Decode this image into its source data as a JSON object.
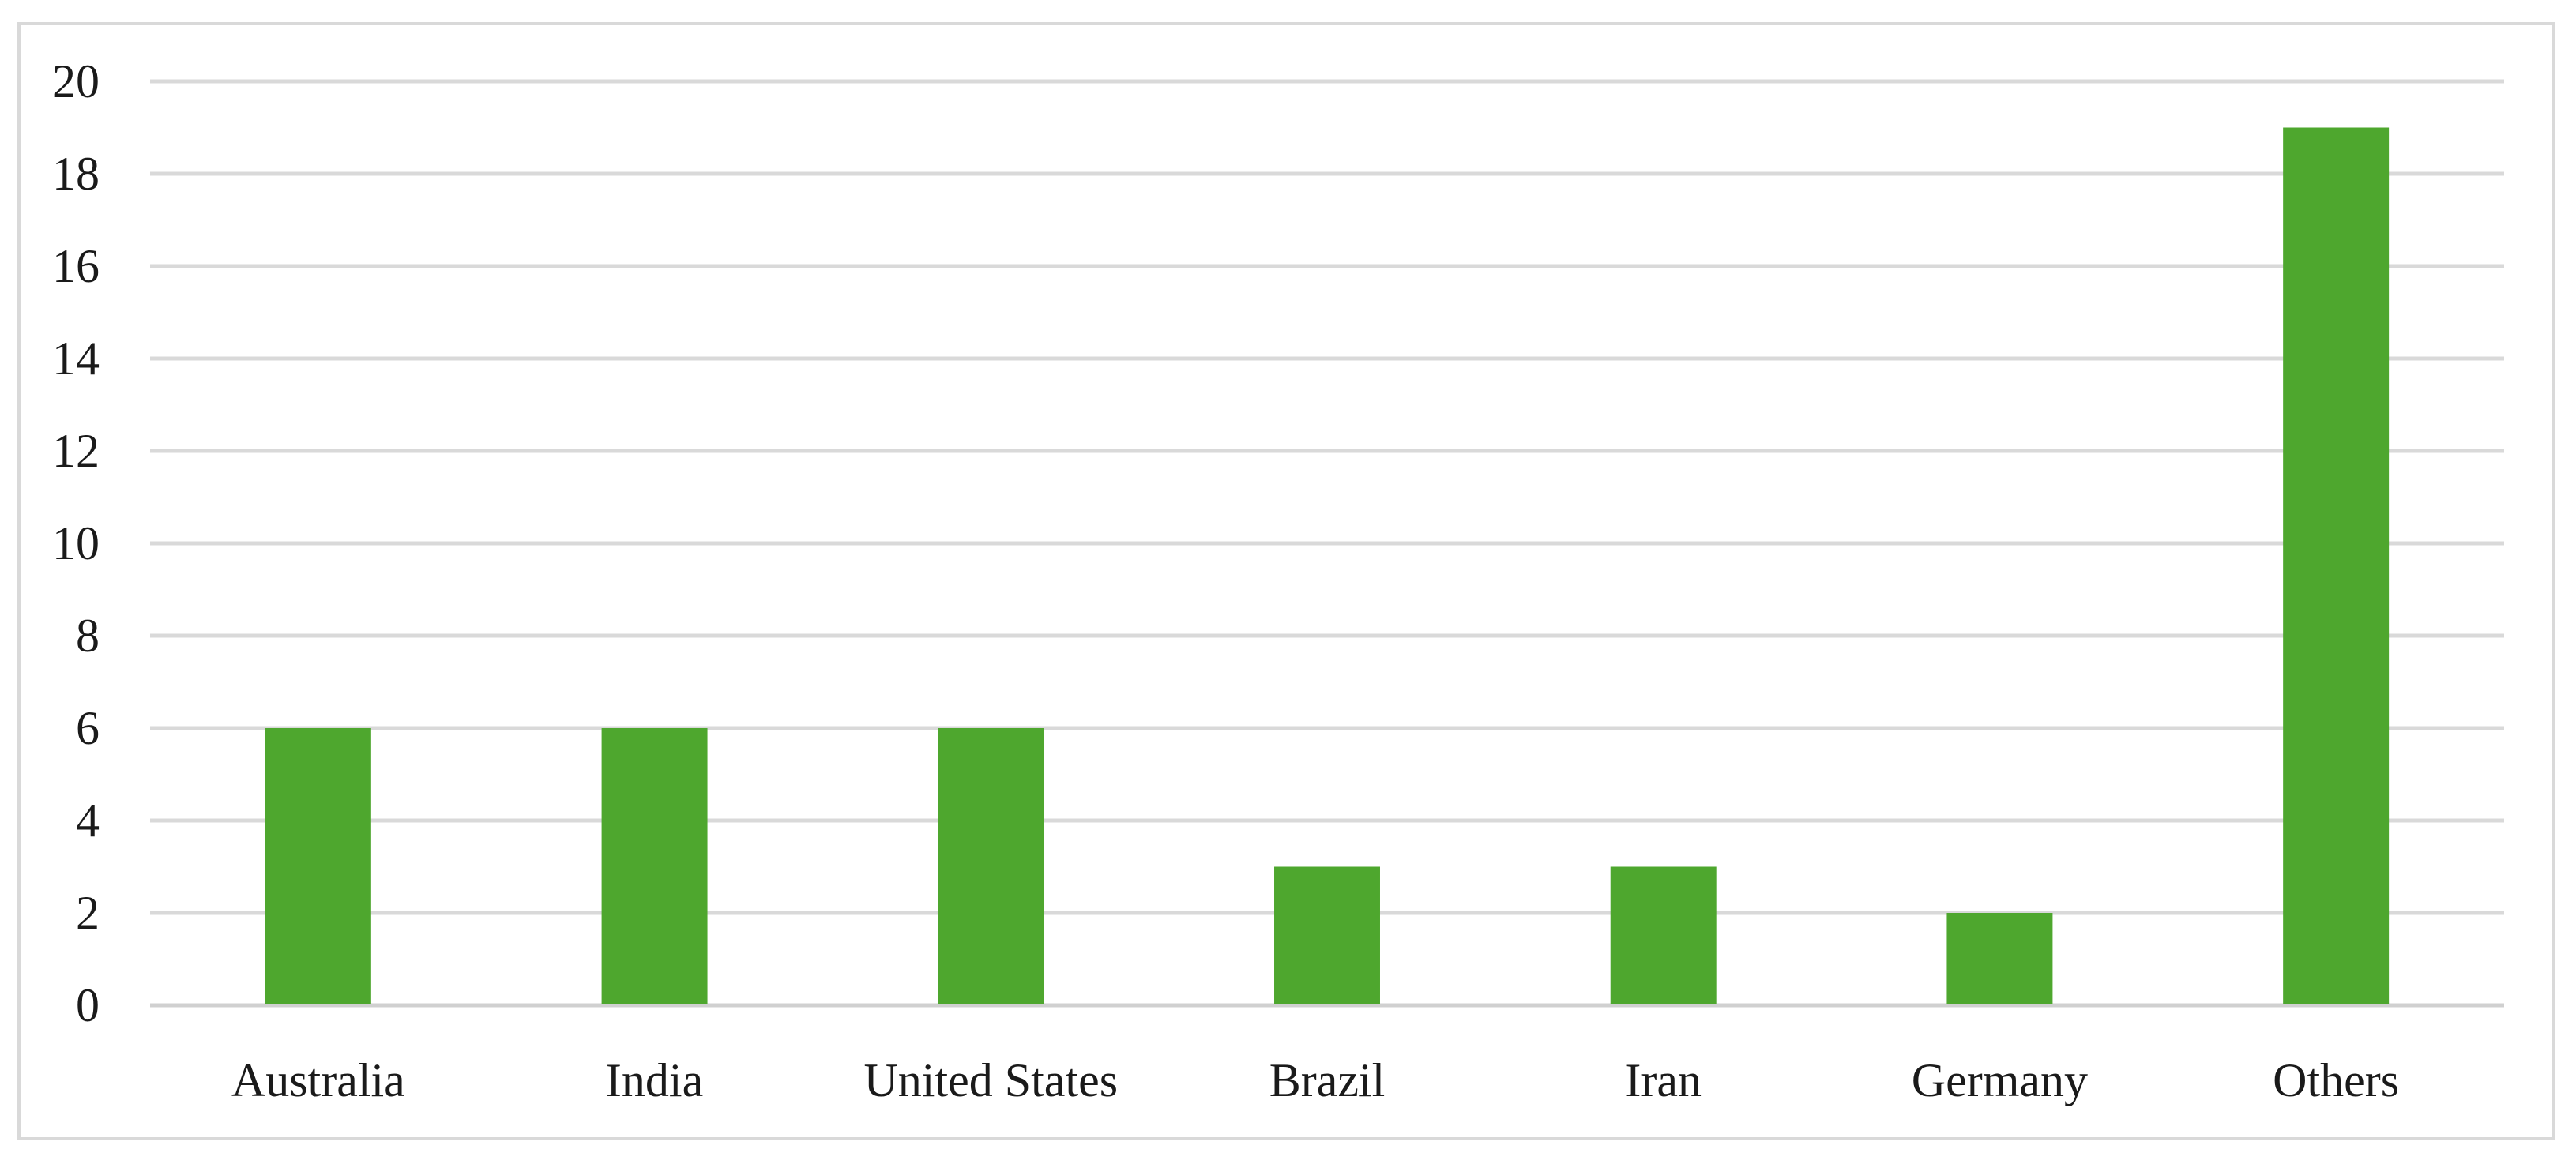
{
  "chart_data": {
    "type": "bar",
    "title": "",
    "xlabel": "",
    "ylabel": "",
    "categories": [
      "Australia",
      "India",
      "United States",
      "Brazil",
      "Iran",
      "Germany",
      "Others"
    ],
    "values": [
      6,
      6,
      6,
      3,
      3,
      2,
      19
    ],
    "ylim": [
      0,
      20
    ],
    "yticks": [
      0,
      2,
      4,
      6,
      8,
      10,
      12,
      14,
      16,
      18,
      20
    ],
    "grid": true,
    "legend": "none",
    "bar_color": "#4ea72e",
    "grid_color": "#d9d9d9"
  }
}
